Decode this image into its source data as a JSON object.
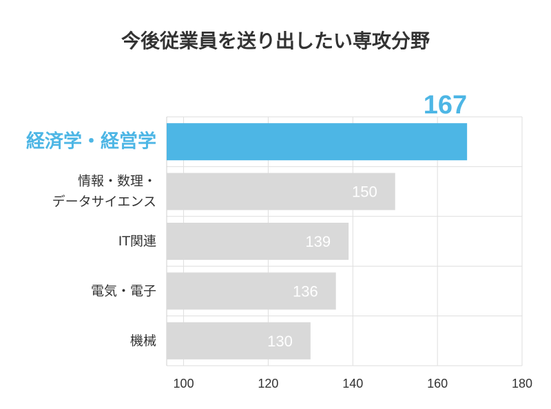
{
  "chart_data": {
    "type": "bar",
    "orientation": "horizontal",
    "title": "今後従業員を送り出したい専攻分野",
    "categories": [
      [
        "経済学・経営学"
      ],
      [
        "情報・数理・",
        "データサイエンス"
      ],
      [
        "IT関連"
      ],
      [
        "電気・電子"
      ],
      [
        "機械"
      ]
    ],
    "values": [
      167,
      150,
      139,
      136,
      130
    ],
    "value_labels": [
      "167",
      "150",
      "139",
      "136",
      "130"
    ],
    "x_ticks": [
      100,
      120,
      140,
      160,
      180
    ],
    "xlim": [
      96,
      180
    ],
    "grid": true,
    "highlight_index": 0,
    "colors": {
      "highlight": "#4db6e5",
      "bar": "#d9d9d9",
      "grid": "#dedede",
      "text": "#333333",
      "value_on_bar": "#ffffff"
    }
  }
}
